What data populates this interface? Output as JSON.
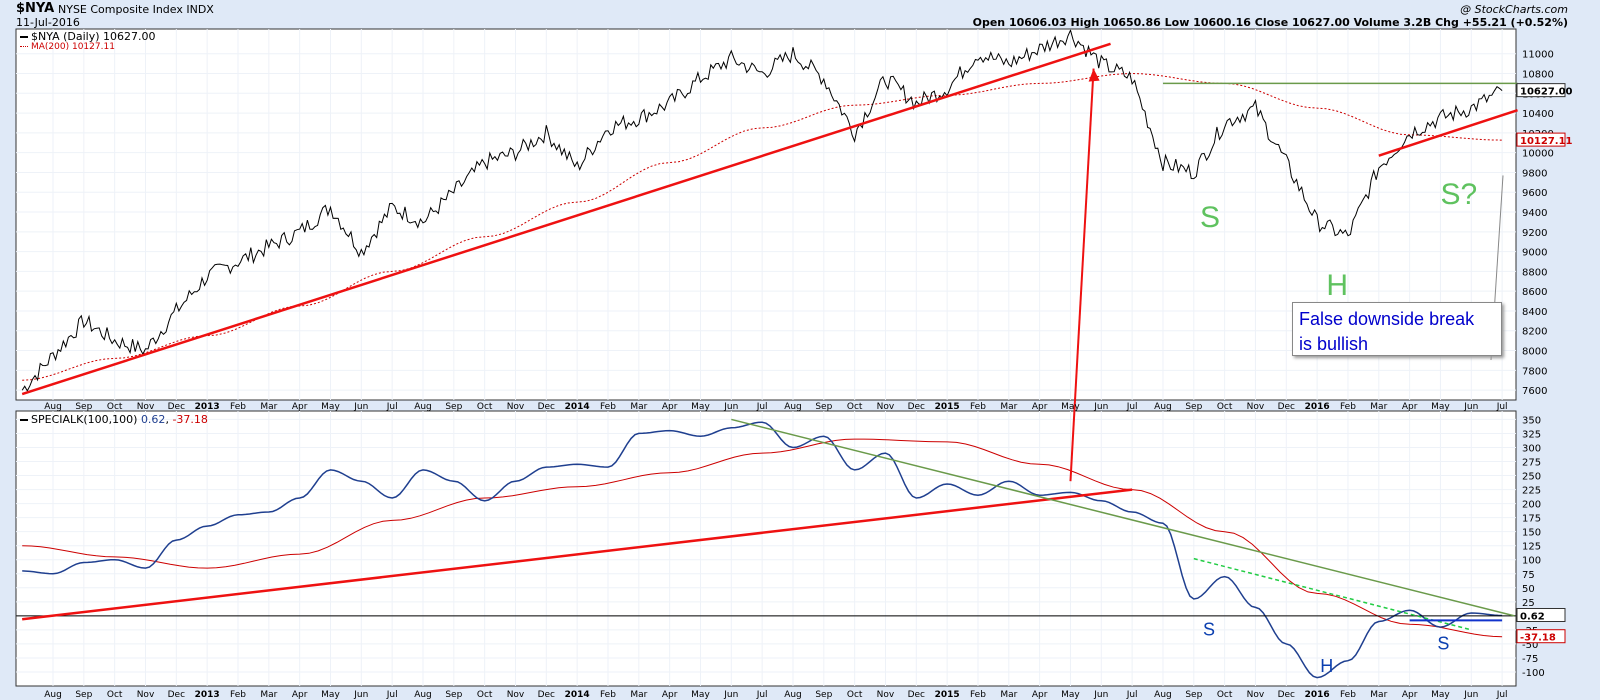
{
  "header": {
    "symbol": "$NYA",
    "name": "NYSE Composite Index INDX",
    "date": "11-Jul-2016",
    "watermark": "@ StockCharts.com",
    "ohlc": "Open 10606.03  High 10650.86  Low 10600.16  Close 10627.00  Volume 3.2B  Chg +55.21 (+0.52%)"
  },
  "colors": {
    "bg": "#dfe9f7",
    "panel": "#ffffff",
    "price": "#000000",
    "ma": "#cc0000",
    "trend": "#ee1111",
    "green": "#6a9a4a",
    "blue": "#1f3f8f",
    "annot_green": "#5fc25f",
    "annot_blue": "#0b3fb0"
  },
  "price_panel": {
    "legend_price": "$NYA (Daily) 10627.00",
    "legend_ma": "MA(200) 10127.11",
    "y_ticks": [
      7600,
      7800,
      8000,
      8200,
      8400,
      8600,
      8800,
      9000,
      9200,
      9400,
      9600,
      9800,
      10000,
      10200,
      10400,
      10600,
      10800,
      11000
    ],
    "ylim": [
      7500,
      11250
    ],
    "last_price_label": "10627.00",
    "last_ma_label": "10127.11",
    "annotations": [
      "S",
      "H",
      "S?"
    ],
    "callout": [
      "False downside break",
      "is bullish"
    ]
  },
  "osc_panel": {
    "legend_name": "SPECIALK(100,100)",
    "legend_v1": "0.62",
    "legend_v2": "-37.18",
    "y_ticks": [
      -100,
      -75,
      -50,
      -25,
      0,
      25,
      50,
      75,
      100,
      125,
      150,
      175,
      200,
      225,
      250,
      275,
      300,
      325,
      350
    ],
    "ylim": [
      -125,
      365
    ],
    "last_label": "0.62",
    "signal_label": "-37.18",
    "annotations": [
      "S",
      "H",
      "S"
    ]
  },
  "x_axis": {
    "labels": [
      "Aug",
      "Sep",
      "Oct",
      "Nov",
      "Dec",
      "2013",
      "Feb",
      "Mar",
      "Apr",
      "May",
      "Jun",
      "Jul",
      "Aug",
      "Sep",
      "Oct",
      "Nov",
      "Dec",
      "2014",
      "Feb",
      "Mar",
      "Apr",
      "May",
      "Jun",
      "Jul",
      "Aug",
      "Sep",
      "Oct",
      "Nov",
      "Dec",
      "2015",
      "Feb",
      "Mar",
      "Apr",
      "May",
      "Jun",
      "Jul",
      "Aug",
      "Sep",
      "Oct",
      "Nov",
      "Dec",
      "2016",
      "Feb",
      "Mar",
      "Apr",
      "May",
      "Jun",
      "Jul"
    ],
    "bold": [
      "2013",
      "2014",
      "2015",
      "2016"
    ]
  },
  "chart_data": [
    {
      "type": "line",
      "title": "$NYA NYSE Composite Index INDX",
      "series": [
        {
          "name": "$NYA (Daily)",
          "x": [
            "2012-07",
            "2012-08",
            "2012-09",
            "2012-10",
            "2012-11",
            "2012-12",
            "2013-01",
            "2013-02",
            "2013-03",
            "2013-04",
            "2013-05",
            "2013-06",
            "2013-07",
            "2013-08",
            "2013-09",
            "2013-10",
            "2013-11",
            "2013-12",
            "2014-01",
            "2014-02",
            "2014-03",
            "2014-04",
            "2014-05",
            "2014-06",
            "2014-07",
            "2014-08",
            "2014-09",
            "2014-10",
            "2014-11",
            "2014-12",
            "2015-01",
            "2015-02",
            "2015-03",
            "2015-04",
            "2015-05",
            "2015-06",
            "2015-07",
            "2015-08",
            "2015-09",
            "2015-10",
            "2015-11",
            "2015-12",
            "2016-01",
            "2016-02",
            "2016-03",
            "2016-04",
            "2016-05",
            "2016-06",
            "2016-07"
          ],
          "values": [
            7600,
            7950,
            8300,
            8100,
            8000,
            8400,
            8750,
            8900,
            9050,
            9200,
            9450,
            9000,
            9450,
            9300,
            9600,
            9900,
            10000,
            10200,
            9850,
            10250,
            10350,
            10500,
            10750,
            10950,
            10800,
            11000,
            10750,
            10200,
            10750,
            10500,
            10650,
            11000,
            10900,
            11050,
            11200,
            10900,
            10750,
            9900,
            9800,
            10300,
            10450,
            9900,
            9300,
            9150,
            9850,
            10200,
            10350,
            10450,
            10627
          ]
        },
        {
          "name": "MA(200)",
          "x": [
            "2012-07",
            "2012-10",
            "2013-01",
            "2013-04",
            "2013-07",
            "2013-10",
            "2014-01",
            "2014-04",
            "2014-07",
            "2014-10",
            "2015-01",
            "2015-04",
            "2015-07",
            "2015-10",
            "2016-01",
            "2016-04",
            "2016-07"
          ],
          "values": [
            7700,
            7920,
            8150,
            8450,
            8800,
            9150,
            9500,
            9900,
            10250,
            10480,
            10580,
            10700,
            10800,
            10700,
            10450,
            10180,
            10127
          ]
        }
      ],
      "ylim": [
        7500,
        11250
      ]
    },
    {
      "type": "line",
      "title": "SPECIALK(100,100)",
      "series": [
        {
          "name": "SPECIALK",
          "x": [
            "2012-07",
            "2012-08",
            "2012-09",
            "2012-10",
            "2012-11",
            "2012-12",
            "2013-01",
            "2013-02",
            "2013-03",
            "2013-04",
            "2013-05",
            "2013-06",
            "2013-07",
            "2013-08",
            "2013-09",
            "2013-10",
            "2013-11",
            "2013-12",
            "2014-01",
            "2014-02",
            "2014-03",
            "2014-04",
            "2014-05",
            "2014-06",
            "2014-07",
            "2014-08",
            "2014-09",
            "2014-10",
            "2014-11",
            "2014-12",
            "2015-01",
            "2015-02",
            "2015-03",
            "2015-04",
            "2015-05",
            "2015-06",
            "2015-07",
            "2015-08",
            "2015-09",
            "2015-10",
            "2015-11",
            "2015-12",
            "2016-01",
            "2016-02",
            "2016-03",
            "2016-04",
            "2016-05",
            "2016-06",
            "2016-07"
          ],
          "values": [
            80,
            75,
            95,
            100,
            85,
            135,
            160,
            180,
            185,
            210,
            260,
            240,
            210,
            260,
            240,
            205,
            240,
            265,
            270,
            265,
            325,
            330,
            320,
            335,
            345,
            300,
            320,
            260,
            290,
            210,
            235,
            215,
            240,
            215,
            220,
            205,
            185,
            165,
            30,
            70,
            15,
            -50,
            -110,
            -80,
            -10,
            10,
            -20,
            5,
            0.62
          ]
        },
        {
          "name": "Signal",
          "x": [
            "2012-07",
            "2012-10",
            "2013-01",
            "2013-04",
            "2013-07",
            "2013-10",
            "2014-01",
            "2014-04",
            "2014-07",
            "2014-10",
            "2015-01",
            "2015-04",
            "2015-07",
            "2015-10",
            "2016-01",
            "2016-04",
            "2016-07"
          ],
          "values": [
            125,
            105,
            85,
            110,
            170,
            210,
            230,
            255,
            290,
            315,
            310,
            270,
            225,
            150,
            40,
            -15,
            -37.18
          ]
        }
      ],
      "ylim": [
        -125,
        365
      ]
    }
  ]
}
